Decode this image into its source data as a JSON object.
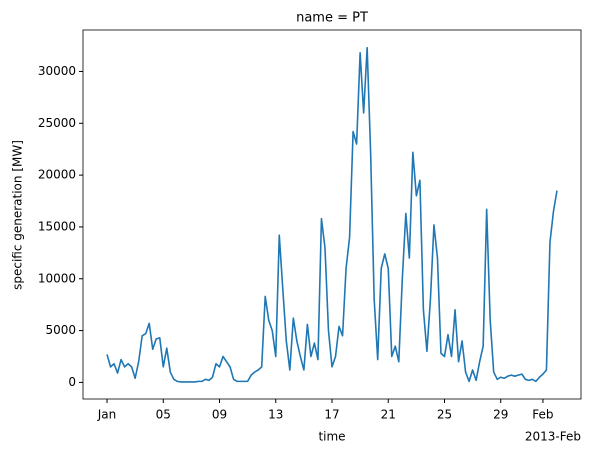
{
  "chart_data": {
    "type": "line",
    "title": "name = PT",
    "xlabel": "time",
    "ylabel": "specific generation [MW]",
    "x_offset_label": "2013-Feb",
    "x": [
      "2013-01-01 00:00",
      "2013-01-01 06:00",
      "2013-01-01 12:00",
      "2013-01-01 18:00",
      "2013-01-02 00:00",
      "2013-01-02 06:00",
      "2013-01-02 12:00",
      "2013-01-02 18:00",
      "2013-01-03 00:00",
      "2013-01-03 06:00",
      "2013-01-03 12:00",
      "2013-01-03 18:00",
      "2013-01-04 00:00",
      "2013-01-04 06:00",
      "2013-01-04 12:00",
      "2013-01-04 18:00",
      "2013-01-05 00:00",
      "2013-01-05 06:00",
      "2013-01-05 12:00",
      "2013-01-05 18:00",
      "2013-01-06 00:00",
      "2013-01-06 06:00",
      "2013-01-06 12:00",
      "2013-01-06 18:00",
      "2013-01-07 00:00",
      "2013-01-07 06:00",
      "2013-01-07 12:00",
      "2013-01-07 18:00",
      "2013-01-08 00:00",
      "2013-01-08 06:00",
      "2013-01-08 12:00",
      "2013-01-08 18:00",
      "2013-01-09 00:00",
      "2013-01-09 06:00",
      "2013-01-09 12:00",
      "2013-01-09 18:00",
      "2013-01-10 00:00",
      "2013-01-10 06:00",
      "2013-01-10 12:00",
      "2013-01-10 18:00",
      "2013-01-11 00:00",
      "2013-01-11 06:00",
      "2013-01-11 12:00",
      "2013-01-11 18:00",
      "2013-01-12 00:00",
      "2013-01-12 06:00",
      "2013-01-12 12:00",
      "2013-01-12 18:00",
      "2013-01-13 00:00",
      "2013-01-13 06:00",
      "2013-01-13 12:00",
      "2013-01-13 18:00",
      "2013-01-14 00:00",
      "2013-01-14 06:00",
      "2013-01-14 12:00",
      "2013-01-14 18:00",
      "2013-01-15 00:00",
      "2013-01-15 06:00",
      "2013-01-15 12:00",
      "2013-01-15 18:00",
      "2013-01-16 00:00",
      "2013-01-16 06:00",
      "2013-01-16 12:00",
      "2013-01-16 18:00",
      "2013-01-17 00:00",
      "2013-01-17 06:00",
      "2013-01-17 12:00",
      "2013-01-17 18:00",
      "2013-01-18 00:00",
      "2013-01-18 06:00",
      "2013-01-18 12:00",
      "2013-01-18 18:00",
      "2013-01-19 00:00",
      "2013-01-19 06:00",
      "2013-01-19 12:00",
      "2013-01-19 18:00",
      "2013-01-20 00:00",
      "2013-01-20 06:00",
      "2013-01-20 12:00",
      "2013-01-20 18:00",
      "2013-01-21 00:00",
      "2013-01-21 06:00",
      "2013-01-21 12:00",
      "2013-01-21 18:00",
      "2013-01-22 00:00",
      "2013-01-22 06:00",
      "2013-01-22 12:00",
      "2013-01-22 18:00",
      "2013-01-23 00:00",
      "2013-01-23 06:00",
      "2013-01-23 12:00",
      "2013-01-23 18:00",
      "2013-01-24 00:00",
      "2013-01-24 06:00",
      "2013-01-24 12:00",
      "2013-01-24 18:00",
      "2013-01-25 00:00",
      "2013-01-25 06:00",
      "2013-01-25 12:00",
      "2013-01-25 18:00",
      "2013-01-26 00:00",
      "2013-01-26 06:00",
      "2013-01-26 12:00",
      "2013-01-26 18:00",
      "2013-01-27 00:00",
      "2013-01-27 06:00",
      "2013-01-27 12:00",
      "2013-01-27 18:00",
      "2013-01-28 00:00",
      "2013-01-28 06:00",
      "2013-01-28 12:00",
      "2013-01-28 18:00",
      "2013-01-29 00:00",
      "2013-01-29 06:00",
      "2013-01-29 12:00",
      "2013-01-29 18:00",
      "2013-01-30 00:00",
      "2013-01-30 06:00",
      "2013-01-30 12:00",
      "2013-01-30 18:00",
      "2013-01-31 00:00",
      "2013-01-31 06:00",
      "2013-01-31 12:00",
      "2013-01-31 18:00",
      "2013-02-01 00:00",
      "2013-02-01 06:00",
      "2013-02-01 12:00",
      "2013-02-01 18:00",
      "2013-02-02 00:00"
    ],
    "series": [
      {
        "name": "PT",
        "color": "#1f77b4",
        "values": [
          2700,
          1500,
          1800,
          900,
          2200,
          1500,
          1800,
          1500,
          400,
          2000,
          4500,
          4700,
          5700,
          3200,
          4200,
          4300,
          1500,
          3300,
          1000,
          300,
          100,
          50,
          50,
          50,
          50,
          50,
          100,
          100,
          300,
          200,
          500,
          1800,
          1500,
          2500,
          2000,
          1500,
          300,
          100,
          100,
          100,
          100,
          700,
          1000,
          1200,
          1500,
          8300,
          6000,
          5000,
          2500,
          14200,
          9000,
          4000,
          1200,
          6200,
          4000,
          2500,
          1200,
          5600,
          2500,
          3800,
          2200,
          15800,
          13000,
          5000,
          1500,
          2500,
          5400,
          4500,
          11000,
          14000,
          24200,
          23000,
          31800,
          26000,
          32300,
          22000,
          8000,
          2200,
          11000,
          12400,
          11000,
          2500,
          3500,
          2000,
          10000,
          16300,
          12000,
          22200,
          18000,
          19500,
          7000,
          3000,
          8000,
          15200,
          12000,
          2800,
          2500,
          4600,
          2500,
          7000,
          2000,
          4000,
          1000,
          100,
          1200,
          200,
          2000,
          3500,
          16700,
          6000,
          1000,
          300,
          500,
          400,
          600,
          700,
          600,
          700,
          800,
          300,
          200,
          300,
          100,
          500,
          800,
          1200,
          13500,
          16500,
          18500
        ]
      }
    ],
    "xlim": [
      "2012-12-30 07:00",
      "2013-02-03 17:00"
    ],
    "xticks": [
      {
        "value": "2013-01-01 00:00",
        "label": "Jan"
      },
      {
        "value": "2013-01-05 00:00",
        "label": "05"
      },
      {
        "value": "2013-01-09 00:00",
        "label": "09"
      },
      {
        "value": "2013-01-13 00:00",
        "label": "13"
      },
      {
        "value": "2013-01-17 00:00",
        "label": "17"
      },
      {
        "value": "2013-01-21 00:00",
        "label": "21"
      },
      {
        "value": "2013-01-25 00:00",
        "label": "25"
      },
      {
        "value": "2013-01-29 00:00",
        "label": "29"
      },
      {
        "value": "2013-02-01 00:00",
        "label": "Feb"
      }
    ],
    "ylim": [
      -1600,
      34000
    ],
    "yticks": [
      0,
      5000,
      10000,
      15000,
      20000,
      25000,
      30000
    ],
    "grid": false
  }
}
